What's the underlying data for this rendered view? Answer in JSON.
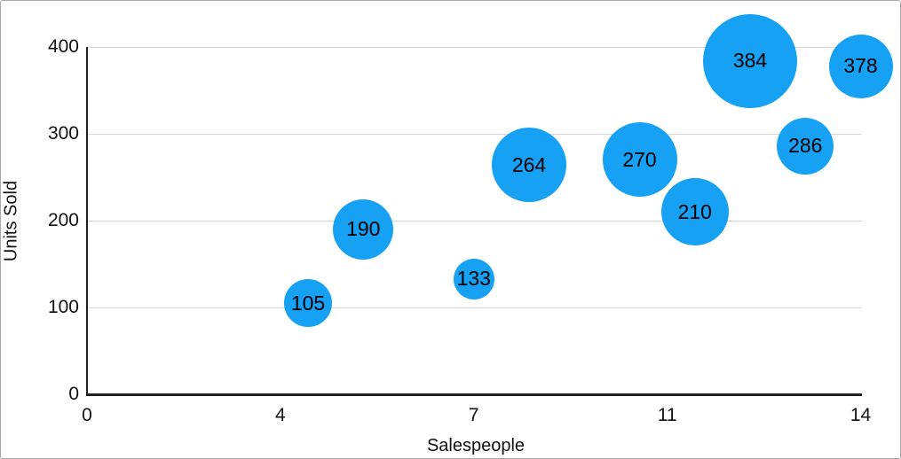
{
  "chart_data": {
    "type": "scatter",
    "subtype": "bubble",
    "title": "",
    "xlabel": "Salespeople",
    "ylabel": "Units Sold",
    "xlim": [
      0,
      14
    ],
    "ylim": [
      0,
      400
    ],
    "x_tick_values": [
      0,
      3.5,
      7,
      10.5,
      14
    ],
    "x_tick_labels": [
      "0",
      "4",
      "7",
      "11",
      "14"
    ],
    "y_tick_values": [
      0,
      100,
      200,
      300,
      400
    ],
    "y_tick_labels": [
      "0",
      "100",
      "200",
      "300",
      "400"
    ],
    "grid": true,
    "legend": false,
    "bubble_color": "#16a1f4",
    "label_color": "#000000",
    "axis_color": "#222222",
    "gridline_color": "#d7d7d7",
    "points": [
      {
        "x": 4,
        "y": 105,
        "label": "105",
        "radius_px": 27
      },
      {
        "x": 5,
        "y": 190,
        "label": "190",
        "radius_px": 34
      },
      {
        "x": 7,
        "y": 133,
        "label": "133",
        "radius_px": 23
      },
      {
        "x": 8,
        "y": 264,
        "label": "264",
        "radius_px": 42
      },
      {
        "x": 10,
        "y": 270,
        "label": "270",
        "radius_px": 42
      },
      {
        "x": 11,
        "y": 210,
        "label": "210",
        "radius_px": 38
      },
      {
        "x": 12,
        "y": 384,
        "label": "384",
        "radius_px": 53
      },
      {
        "x": 13,
        "y": 286,
        "label": "286",
        "radius_px": 32
      },
      {
        "x": 14,
        "y": 378,
        "label": "378",
        "radius_px": 36
      }
    ]
  }
}
